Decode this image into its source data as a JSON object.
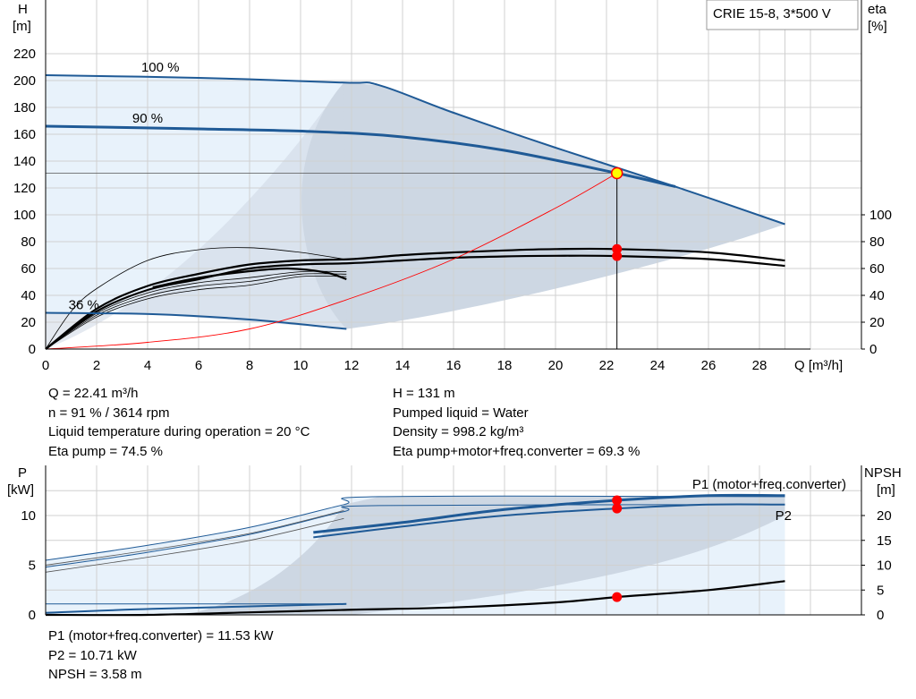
{
  "model_label": "CRIE 15-8, 3*500 V",
  "upper_info_left": [
    "Q = 22.41 m³/h",
    "n = 91 % / 3614 rpm",
    "Liquid temperature during operation = 20 °C",
    "Eta pump = 74.5 %"
  ],
  "upper_info_right": [
    "H = 131 m",
    "Pumped liquid = Water",
    "Density = 998.2 kg/m³",
    "Eta pump+motor+freq.converter = 69.3 %"
  ],
  "lower_info": [
    "P1 (motor+freq.converter) = 11.53 kW",
    "P2 = 10.71 kW",
    "NPSH = 3.58 m"
  ],
  "colors": {
    "curve_blue": "#1f5a96",
    "eta_black": "#000000",
    "system_red": "#ff0000",
    "operating_point": "#ff0000",
    "duty_point_fill": "#ffff00",
    "area_light": "#e8f2fb",
    "area_dark": "#cdd7e3",
    "grid": "#d0d0d0"
  },
  "chart_data": [
    {
      "type": "line",
      "name": "head-efficiency",
      "xlabel": "Q [m³/h]",
      "ylabel": "H",
      "ylabel_unit": "[m]",
      "y2label": "eta",
      "y2label_unit": "[%]",
      "xlim": [
        0,
        30
      ],
      "ylim": [
        0,
        230
      ],
      "x_ticks": [
        0,
        2,
        4,
        6,
        8,
        10,
        12,
        14,
        16,
        18,
        20,
        22,
        24,
        26,
        28
      ],
      "y_ticks": [
        0,
        20,
        40,
        60,
        80,
        100,
        120,
        140,
        160,
        180,
        200,
        220
      ],
      "y2_ticks": [
        0,
        20,
        40,
        60,
        80,
        100
      ],
      "grid": true,
      "speed_labels": [
        {
          "text": "100 %",
          "x": 4.5,
          "y": 210
        },
        {
          "text": "90 %",
          "x": 4.0,
          "y": 172
        },
        {
          "text": "36 %",
          "x": 1.5,
          "y": 33
        }
      ],
      "head_curves": [
        {
          "speed": "100 %",
          "points": [
            [
              0,
              204
            ],
            [
              6,
              202
            ],
            [
              11.7,
              198.5
            ],
            [
              13.1,
              196.5
            ],
            [
              16,
              176
            ],
            [
              20,
              150
            ],
            [
              24.7,
              121
            ],
            [
              29,
              93
            ]
          ]
        },
        {
          "speed": "90 %",
          "points": [
            [
              0,
              166
            ],
            [
              6,
              164
            ],
            [
              10.5,
              162
            ],
            [
              14,
              158
            ],
            [
              18,
              148
            ],
            [
              22.41,
              131
            ],
            [
              24.7,
              121
            ]
          ]
        },
        {
          "speed": "36 %",
          "points": [
            [
              0,
              27
            ],
            [
              4.2,
              26
            ],
            [
              8,
              22
            ],
            [
              11.8,
              15
            ]
          ]
        }
      ],
      "eta_curves": [
        {
          "points": [
            [
              0,
              0
            ],
            [
              2,
              28
            ],
            [
              4,
              44
            ],
            [
              6,
              52
            ],
            [
              8,
              60
            ],
            [
              10,
              63
            ],
            [
              12,
              64
            ],
            [
              14,
              66
            ],
            [
              16,
              68
            ],
            [
              18,
              69
            ],
            [
              20,
              69.5
            ],
            [
              22.41,
              69.3
            ],
            [
              26,
              67
            ],
            [
              29,
              62
            ]
          ]
        },
        {
          "points": [
            [
              0,
              0
            ],
            [
              2,
              30
            ],
            [
              4,
              47
            ],
            [
              6,
              56
            ],
            [
              8,
              63
            ],
            [
              10,
              66
            ],
            [
              12,
              67
            ],
            [
              14,
              70
            ],
            [
              16,
              72
            ],
            [
              18,
              73.5
            ],
            [
              20,
              74.5
            ],
            [
              22.41,
              74.5
            ],
            [
              26,
              72
            ],
            [
              29,
              66
            ]
          ]
        },
        {
          "points": [
            [
              0,
              0
            ],
            [
              1,
              28
            ],
            [
              2,
              45
            ],
            [
              4,
              66
            ],
            [
              6,
              74
            ],
            [
              8,
              75.5
            ],
            [
              10,
              72
            ],
            [
              11.7,
              67
            ]
          ]
        },
        {
          "points": [
            [
              4.2,
              46
            ],
            [
              6,
              53
            ],
            [
              8,
              58
            ],
            [
              9.5,
              60
            ],
            [
              11,
              57
            ],
            [
              11.8,
              52
            ]
          ]
        }
      ],
      "system_curve": [
        [
          0,
          0
        ],
        [
          4,
          5
        ],
        [
          8,
          15
        ],
        [
          12,
          38
        ],
        [
          16,
          67
        ],
        [
          20,
          105
        ],
        [
          22.41,
          131
        ]
      ],
      "operating_point": {
        "Q": 22.41,
        "H": 131,
        "eta_pump": 74.5,
        "eta_total": 69.3
      }
    },
    {
      "type": "line",
      "name": "power-npsh",
      "ylabel": "P",
      "ylabel_unit": "[kW]",
      "y2label": "NPSH",
      "y2label_unit": "[m]",
      "xlim": [
        0,
        30
      ],
      "ylim": [
        0,
        12.5
      ],
      "y2lim": [
        0,
        25
      ],
      "y_ticks": [
        0,
        5,
        10
      ],
      "y2_ticks": [
        0,
        5,
        10,
        15,
        20
      ],
      "grid": true,
      "series": [
        {
          "name": "P1 (motor+freq.converter)",
          "points": [
            [
              10.5,
              8.3
            ],
            [
              14,
              9.3
            ],
            [
              18,
              10.6
            ],
            [
              22.41,
              11.53
            ],
            [
              26,
              12.0
            ],
            [
              29,
              12.0
            ]
          ]
        },
        {
          "name": "P2",
          "points": [
            [
              10.5,
              7.8
            ],
            [
              14,
              8.9
            ],
            [
              18,
              10.0
            ],
            [
              22.41,
              10.71
            ],
            [
              26,
              11.1
            ],
            [
              29,
              11.1
            ]
          ]
        }
      ],
      "max_curves": [
        [
          [
            0,
            5.5
          ],
          [
            4,
            7.0
          ],
          [
            8,
            8.8
          ],
          [
            11.7,
            11.1
          ],
          [
            13.1,
            11.9
          ],
          [
            29,
            11.9
          ]
        ],
        [
          [
            0,
            4.8
          ],
          [
            4,
            6.3
          ],
          [
            8,
            8.1
          ],
          [
            11.7,
            10.4
          ],
          [
            13.1,
            11.0
          ],
          [
            29,
            11.1
          ]
        ]
      ],
      "npsh_curve": [
        [
          0,
          0
        ],
        [
          4,
          0
        ],
        [
          8,
          0.5
        ],
        [
          11.7,
          1.0
        ],
        [
          16,
          1.5
        ],
        [
          20,
          2.5
        ],
        [
          22.41,
          3.58
        ],
        [
          26,
          5.0
        ],
        [
          29,
          6.8
        ]
      ],
      "operating_point": {
        "P1": 11.53,
        "P2": 10.71,
        "NPSH": 3.58
      }
    }
  ]
}
